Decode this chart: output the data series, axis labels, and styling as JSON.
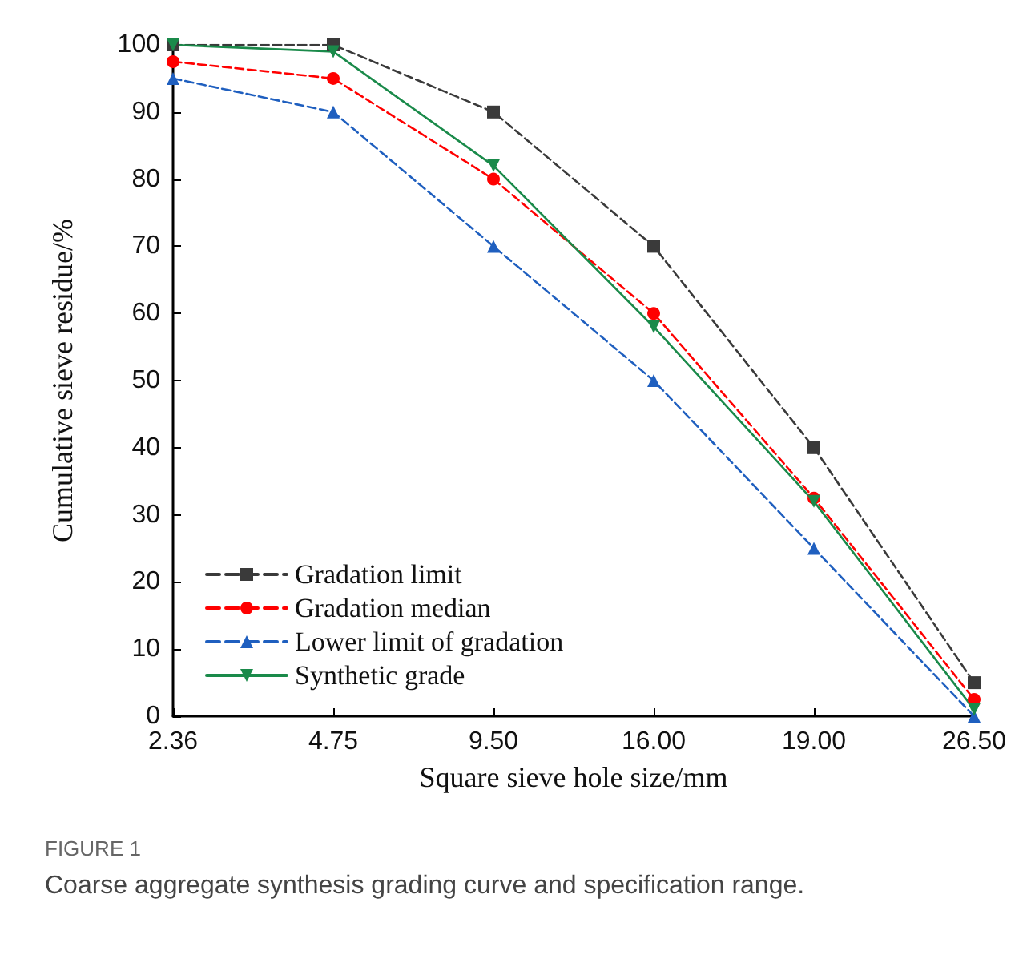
{
  "chart_data": {
    "type": "line",
    "xlabel": "Square sieve hole size/mm",
    "ylabel": "Cumulative sieve residue/%",
    "categories": [
      "2.36",
      "4.75",
      "9.50",
      "16.00",
      "19.00",
      "26.50"
    ],
    "series": [
      {
        "name": "Gradation limit",
        "color": "#3a3a3a",
        "marker": "square",
        "line_style": "dashed",
        "values": [
          100,
          100,
          90,
          70,
          40,
          5
        ]
      },
      {
        "name": "Gradation median",
        "color": "#ff0000",
        "marker": "circle",
        "line_style": "dashed",
        "values": [
          97.5,
          95,
          80,
          60,
          32.5,
          2.5
        ]
      },
      {
        "name": "Lower limit of gradation",
        "color": "#1f5fbf",
        "marker": "triangle",
        "line_style": "dashed",
        "values": [
          95,
          90,
          70,
          50,
          25,
          0
        ]
      },
      {
        "name": "Synthetic grade",
        "color": "#1a8a4a",
        "marker": "triangle-down",
        "line_style": "solid",
        "values": [
          100,
          99,
          82,
          58,
          32,
          1
        ]
      }
    ],
    "ylim": [
      0,
      100
    ],
    "yticks": [
      0,
      10,
      20,
      30,
      40,
      50,
      60,
      70,
      80,
      90,
      100
    ],
    "grid": false,
    "legend": "bottom left",
    "annotations": [
      "FIGURE 1",
      "Coarse aggregate synthesis grading curve and specification range."
    ]
  }
}
